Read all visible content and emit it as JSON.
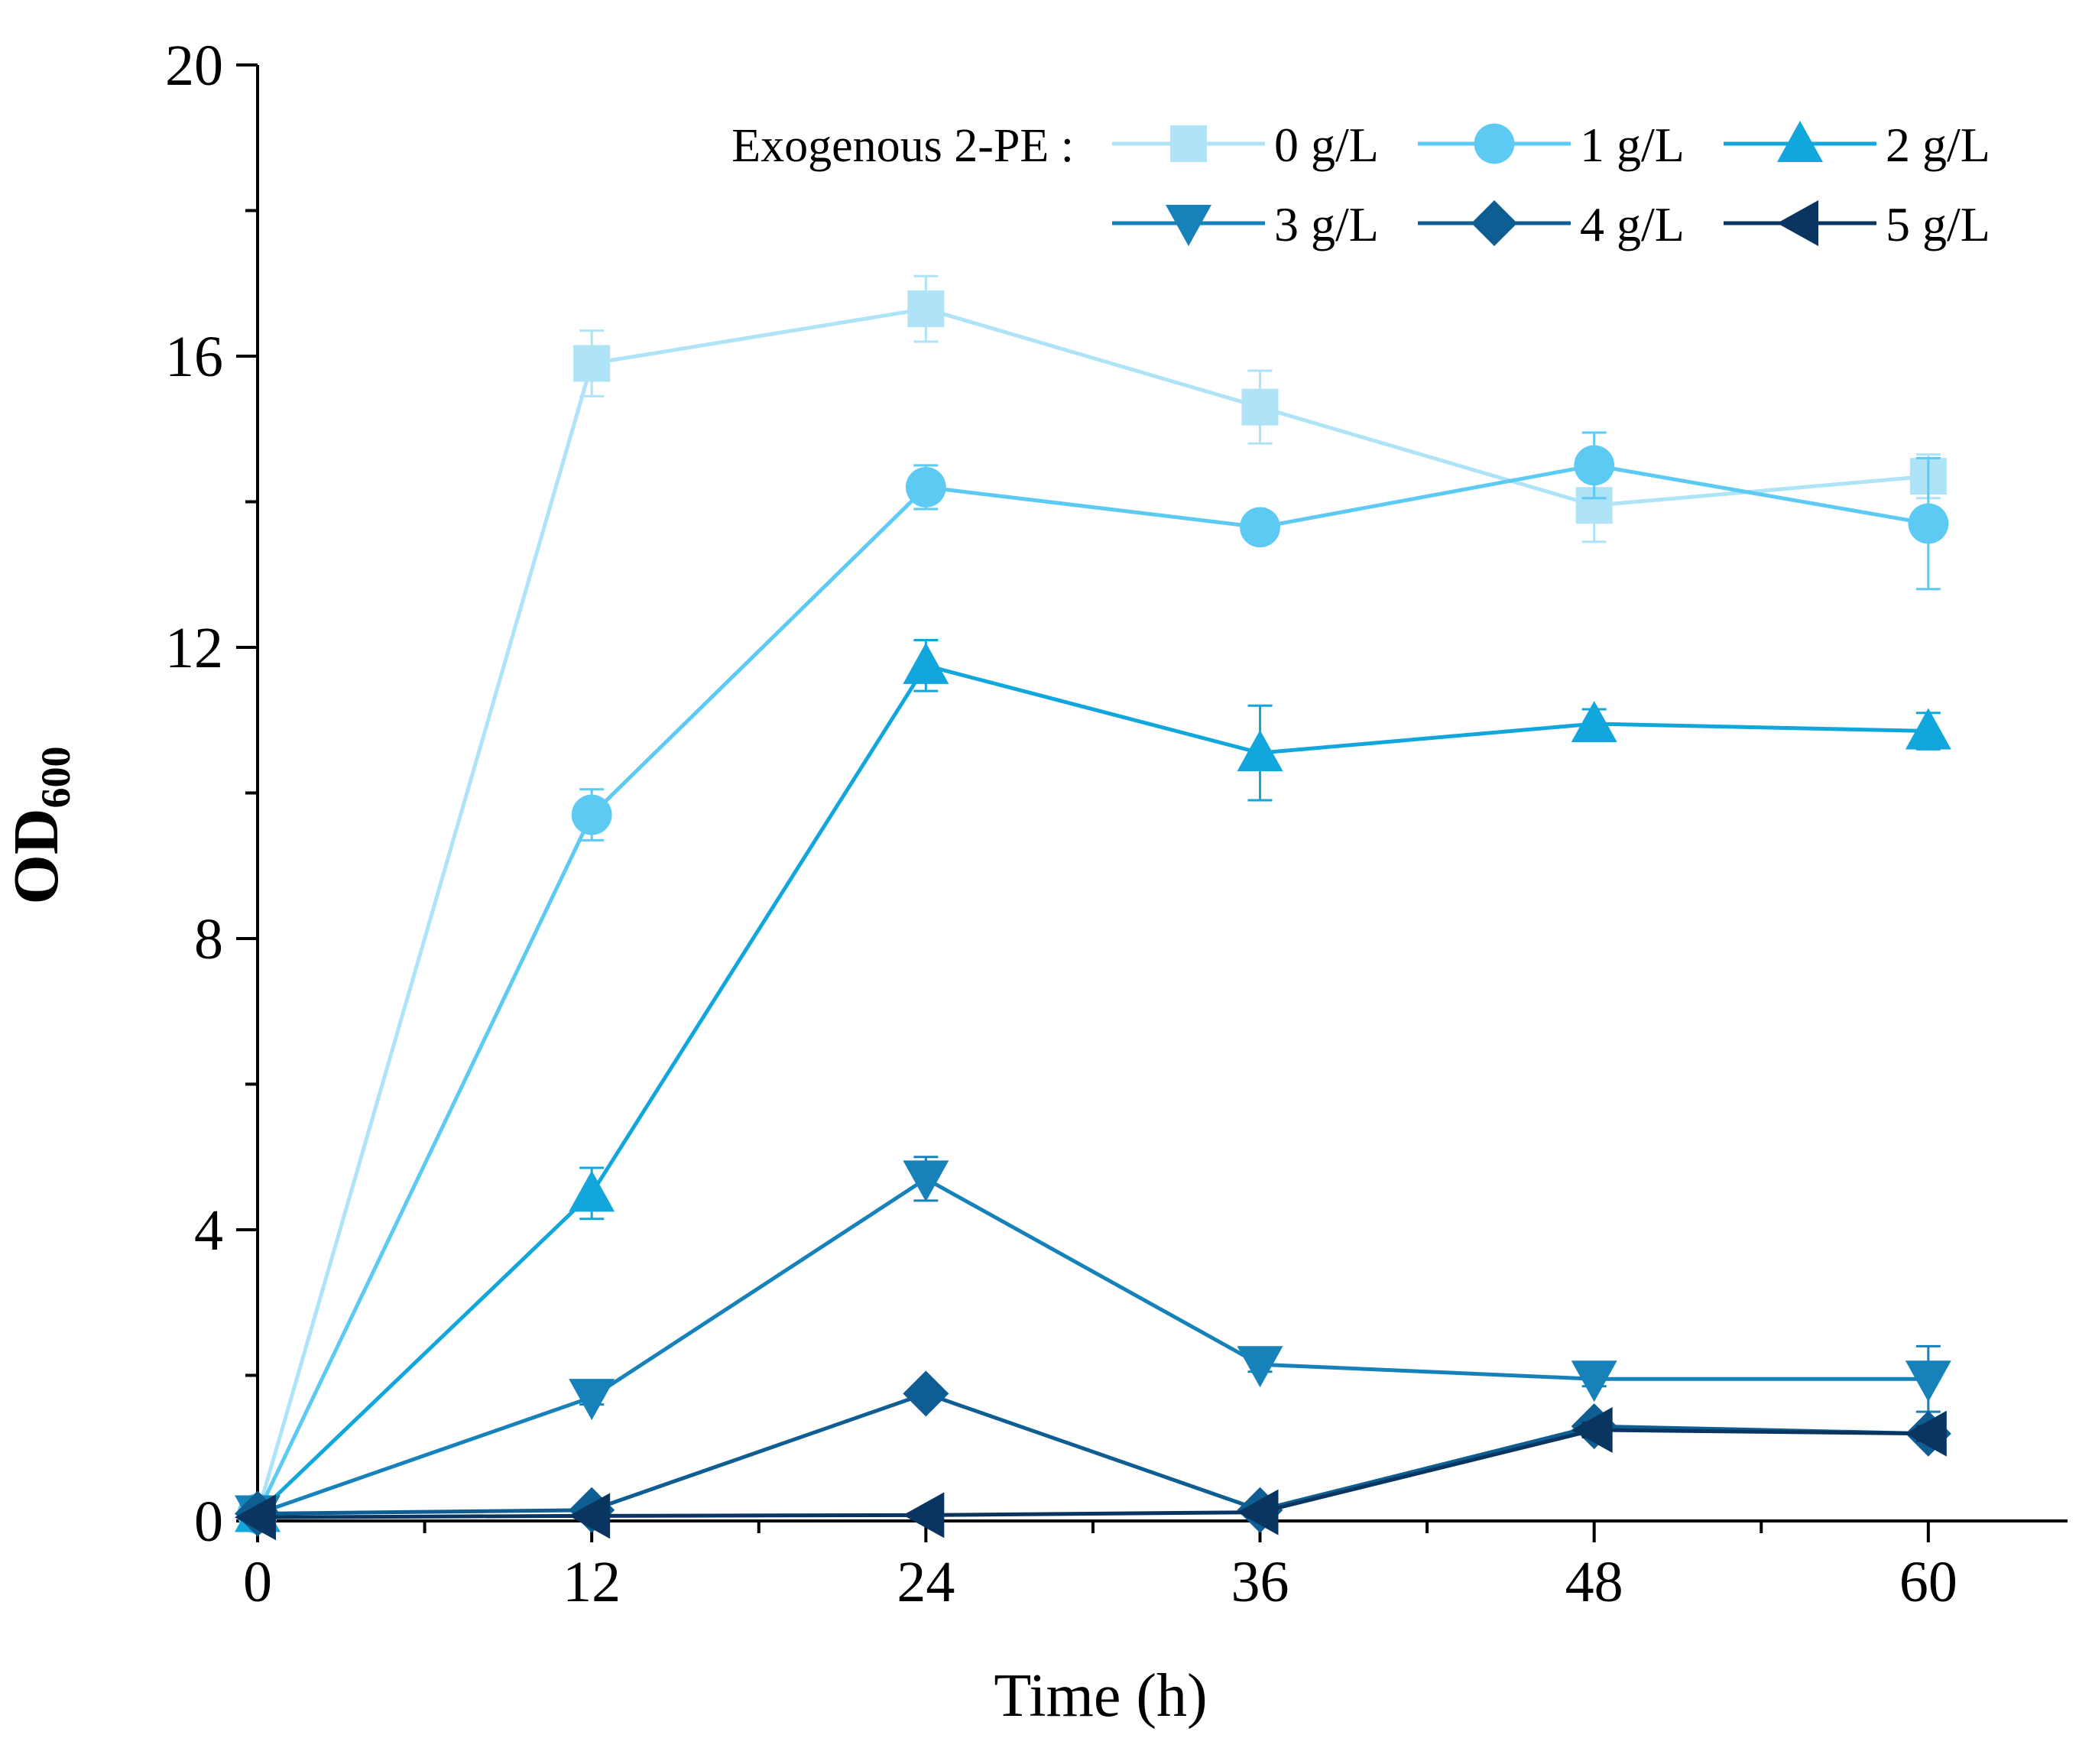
{
  "chart_data": {
    "type": "line",
    "title": "",
    "xlabel": "Time (h)",
    "ylabel": "OD",
    "ylabel_sub": "600",
    "xlim": [
      0,
      65
    ],
    "ylim": [
      0,
      20
    ],
    "xticks": [
      0,
      12,
      24,
      36,
      48,
      60
    ],
    "yticks": [
      0,
      4,
      8,
      12,
      16,
      20
    ],
    "x": [
      0,
      12,
      24,
      36,
      48,
      60
    ],
    "grid": false,
    "legend": {
      "title": "Exogenous 2-PE :",
      "placement": "top-right"
    },
    "series": [
      {
        "name": "0 g/L",
        "marker": "square",
        "color": "#aee3f8",
        "values": [
          0.1,
          15.9,
          16.65,
          15.3,
          13.95,
          14.35
        ],
        "errors": [
          0.05,
          0.45,
          0.45,
          0.5,
          0.5,
          0.3
        ]
      },
      {
        "name": "1 g/L",
        "marker": "circle",
        "color": "#5ccaf2",
        "values": [
          0.1,
          9.7,
          14.2,
          13.65,
          14.5,
          13.7
        ],
        "errors": [
          0.05,
          0.35,
          0.3,
          0.2,
          0.45,
          0.9
        ]
      },
      {
        "name": "2 g/L",
        "marker": "triangle-up",
        "color": "#11a6dc",
        "values": [
          0.1,
          4.5,
          11.75,
          10.55,
          10.95,
          10.85
        ],
        "errors": [
          0.05,
          0.35,
          0.35,
          0.65,
          0.2,
          0.25
        ]
      },
      {
        "name": "3 g/L",
        "marker": "triangle-down",
        "color": "#1782ba",
        "values": [
          0.1,
          1.7,
          4.7,
          2.15,
          1.95,
          1.95
        ],
        "errors": [
          0.05,
          0.1,
          0.3,
          0.1,
          0.1,
          0.45
        ]
      },
      {
        "name": "4 g/L",
        "marker": "diamond",
        "color": "#0f5e93",
        "values": [
          0.1,
          0.15,
          1.75,
          0.15,
          1.3,
          1.2
        ],
        "errors": [
          0.05,
          0.05,
          0.1,
          0.05,
          0.1,
          0.1
        ]
      },
      {
        "name": "5 g/L",
        "marker": "triangle-left",
        "color": "#0b3561",
        "values": [
          0.05,
          0.07,
          0.08,
          0.12,
          1.25,
          1.2
        ],
        "errors": [
          0.02,
          0.02,
          0.02,
          0.03,
          0.1,
          0.1
        ]
      }
    ]
  }
}
